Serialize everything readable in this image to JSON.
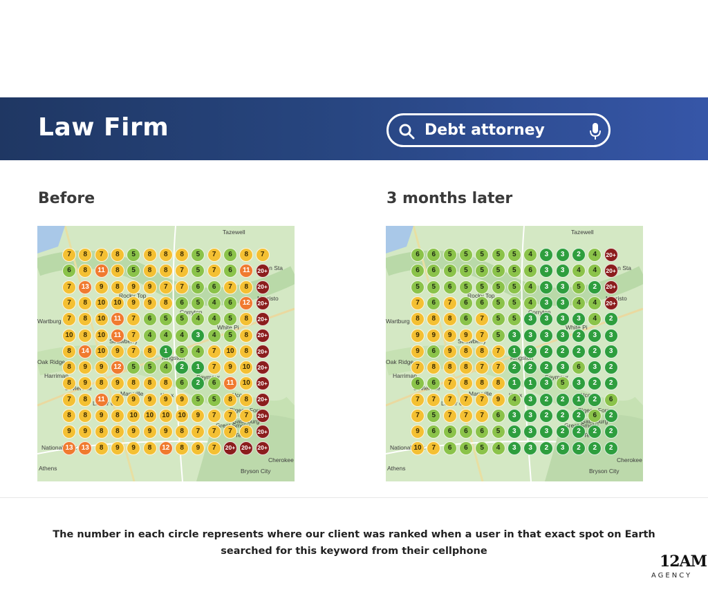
{
  "banner": {
    "title": "Law Firm"
  },
  "search": {
    "query": "Debt attorney",
    "icon": "search-icon",
    "mic_icon": "microphone-icon"
  },
  "panels": [
    {
      "title": "Before",
      "grid": [
        [
          "7",
          "8",
          "7",
          "8",
          "5",
          "8",
          "8",
          "8",
          "5",
          "7",
          "6",
          "8",
          "7"
        ],
        [
          "6",
          "8",
          "11",
          "8",
          "5",
          "8",
          "8",
          "7",
          "5",
          "7",
          "6",
          "11",
          "20+"
        ],
        [
          "7",
          "13",
          "9",
          "8",
          "9",
          "9",
          "7",
          "7",
          "6",
          "6",
          "7",
          "8",
          "20+"
        ],
        [
          "7",
          "8",
          "10",
          "10",
          "9",
          "9",
          "8",
          "6",
          "5",
          "4",
          "6",
          "12",
          "20+"
        ],
        [
          "7",
          "8",
          "10",
          "11",
          "7",
          "6",
          "5",
          "5",
          "4",
          "4",
          "5",
          "8",
          "20+"
        ],
        [
          "10",
          "8",
          "10",
          "11",
          "7",
          "4",
          "4",
          "4",
          "3",
          "4",
          "5",
          "8",
          "20+"
        ],
        [
          "8",
          "14",
          "10",
          "9",
          "7",
          "8",
          "1",
          "5",
          "4",
          "7",
          "10",
          "8",
          "20+"
        ],
        [
          "8",
          "9",
          "9",
          "12",
          "5",
          "5",
          "4",
          "2",
          "1",
          "7",
          "9",
          "10",
          "20+"
        ],
        [
          "8",
          "9",
          "8",
          "9",
          "8",
          "8",
          "8",
          "6",
          "2",
          "6",
          "11",
          "10",
          "20+"
        ],
        [
          "7",
          "8",
          "11",
          "7",
          "9",
          "9",
          "9",
          "9",
          "5",
          "5",
          "8",
          "8",
          "20+"
        ],
        [
          "8",
          "8",
          "9",
          "8",
          "10",
          "10",
          "10",
          "10",
          "9",
          "7",
          "7",
          "7",
          "20+"
        ],
        [
          "9",
          "9",
          "8",
          "8",
          "9",
          "9",
          "9",
          "8",
          "7",
          "7",
          "7",
          "8",
          "20+"
        ],
        [
          "13",
          "13",
          "8",
          "9",
          "9",
          "8",
          "12",
          "8",
          "9",
          "7",
          "20+",
          "20+",
          "20+"
        ]
      ]
    },
    {
      "title": "3 months later",
      "grid": [
        [
          "6",
          "6",
          "5",
          "5",
          "5",
          "5",
          "5",
          "4",
          "3",
          "3",
          "2",
          "4",
          "20+"
        ],
        [
          "6",
          "6",
          "6",
          "5",
          "5",
          "5",
          "5",
          "6",
          "3",
          "3",
          "4",
          "4",
          "20+"
        ],
        [
          "5",
          "5",
          "6",
          "5",
          "5",
          "5",
          "5",
          "4",
          "3",
          "3",
          "5",
          "2",
          "20+"
        ],
        [
          "7",
          "6",
          "7",
          "6",
          "6",
          "5",
          "5",
          "4",
          "3",
          "3",
          "4",
          "4",
          "20+"
        ],
        [
          "8",
          "8",
          "8",
          "6",
          "7",
          "5",
          "5",
          "3",
          "3",
          "3",
          "3",
          "4",
          "2"
        ],
        [
          "9",
          "9",
          "9",
          "9",
          "7",
          "5",
          "3",
          "3",
          "3",
          "3",
          "2",
          "3",
          "3"
        ],
        [
          "9",
          "6",
          "9",
          "8",
          "8",
          "7",
          "1",
          "2",
          "2",
          "2",
          "2",
          "2",
          "3"
        ],
        [
          "7",
          "8",
          "8",
          "8",
          "7",
          "7",
          "2",
          "2",
          "2",
          "3",
          "6",
          "3",
          "2"
        ],
        [
          "6",
          "6",
          "7",
          "8",
          "8",
          "8",
          "1",
          "1",
          "3",
          "5",
          "3",
          "2",
          "2"
        ],
        [
          "7",
          "7",
          "7",
          "7",
          "7",
          "9",
          "4",
          "3",
          "2",
          "2",
          "1",
          "2",
          "6"
        ],
        [
          "7",
          "5",
          "7",
          "7",
          "7",
          "6",
          "3",
          "3",
          "2",
          "2",
          "2",
          "6",
          "2"
        ],
        [
          "9",
          "6",
          "6",
          "6",
          "6",
          "5",
          "3",
          "3",
          "3",
          "2",
          "2",
          "2",
          "2"
        ],
        [
          "10",
          "7",
          "6",
          "6",
          "5",
          "4",
          "3",
          "3",
          "2",
          "3",
          "2",
          "2",
          "2"
        ]
      ]
    }
  ],
  "map_labels": [
    "Tazewell",
    "Bean Sta",
    "Morristo",
    "Rocky Top",
    "Corryton",
    "Wartburg",
    "White Pi",
    "Strawberry",
    "Oak Ridge",
    "Harriman",
    "Kingston",
    "Knox",
    "Alcoa",
    "Pigeon Forge",
    "Gatlinburg",
    "Great Smoky",
    "National Park",
    "Cherokee",
    "Bryson City",
    "Athens",
    "Seymour",
    "Maryville",
    "Sevierville",
    "Lenoir City",
    "Tellico"
  ],
  "caption": {
    "line1": "The number in each circle represents where our client was ranked when a user in that exact spot on Earth",
    "line2": "searched for this keyword from their cellphone"
  },
  "logo": {
    "number": "12AM",
    "word": "AGENCY"
  },
  "colors": {
    "banner_start": "#1f3763",
    "banner_end": "#3656a8",
    "rank_1_3": "#2e9e3e",
    "rank_4_6": "#8bc34a",
    "rank_7_10": "#f4c033",
    "rank_11_15": "#f07a2f",
    "rank_20_plus": "#8b1d1d"
  }
}
